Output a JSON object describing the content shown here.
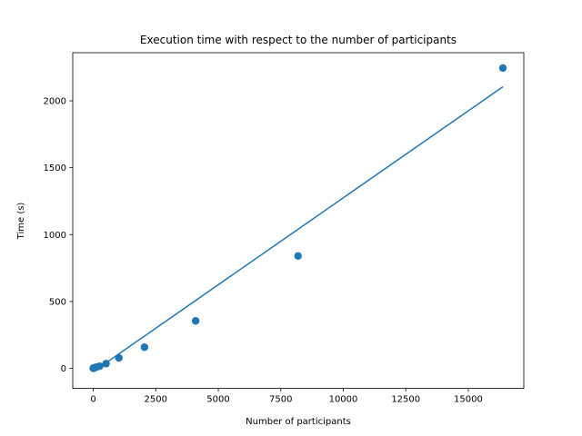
{
  "chart_data": {
    "type": "scatter",
    "title": "Execution time with respect to the number of participants",
    "xlabel": "Number of participants",
    "ylabel": "Time (s)",
    "xlim": [
      -820,
      17220
    ],
    "ylim": [
      -150,
      2360
    ],
    "grid": false,
    "xticks": [
      0,
      2500,
      5000,
      7500,
      10000,
      12500,
      15000
    ],
    "xtick_labels": [
      "0",
      "2500",
      "5000",
      "7500",
      "10000",
      "12500",
      "15000"
    ],
    "yticks": [
      0,
      500,
      1000,
      1500,
      2000
    ],
    "ytick_labels": [
      "0",
      "500",
      "1000",
      "1500",
      "2000"
    ],
    "colors": {
      "series": "#1f77b4",
      "axis": "#000000"
    },
    "series": [
      {
        "kind": "scatter",
        "x": [
          2,
          4,
          8,
          16,
          32,
          64,
          128,
          256,
          512,
          1024,
          2048,
          4096,
          8192,
          16384
        ],
        "y": [
          1,
          1,
          1,
          2,
          3,
          5,
          9,
          16,
          35,
          78,
          158,
          355,
          840,
          2245
        ]
      },
      {
        "kind": "line",
        "x": [
          2,
          16384
        ],
        "y": [
          -25,
          2105
        ]
      }
    ]
  }
}
